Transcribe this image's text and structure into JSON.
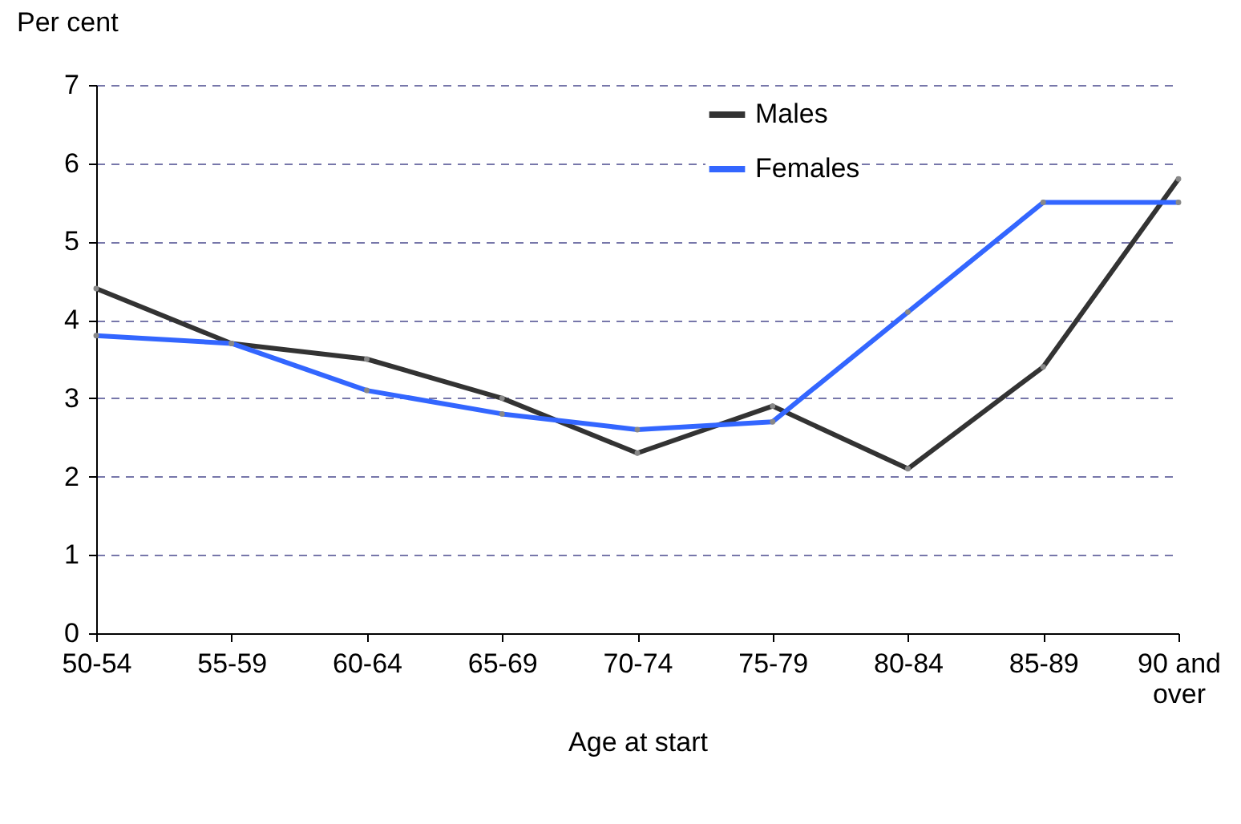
{
  "chart_data": {
    "type": "line",
    "xlabel": "Age at start",
    "ylabel": "Per cent",
    "categories": [
      "50-54",
      "55-59",
      "60-64",
      "65-69",
      "70-74",
      "75-79",
      "80-84",
      "85-89",
      "90 and over"
    ],
    "series": [
      {
        "name": "Males",
        "color": "#333333",
        "values": [
          4.4,
          3.7,
          3.5,
          3.0,
          2.3,
          2.9,
          2.1,
          3.4,
          5.8
        ]
      },
      {
        "name": "Females",
        "color": "#3366ff",
        "values": [
          3.8,
          3.7,
          3.1,
          2.8,
          2.6,
          2.7,
          4.1,
          5.5,
          5.5
        ]
      }
    ],
    "ylim": [
      0,
      7
    ],
    "yticks": [
      0,
      1,
      2,
      3,
      4,
      5,
      6,
      7
    ],
    "grid": "y",
    "legend": "top",
    "marker": "circle",
    "line_style": "solid"
  }
}
